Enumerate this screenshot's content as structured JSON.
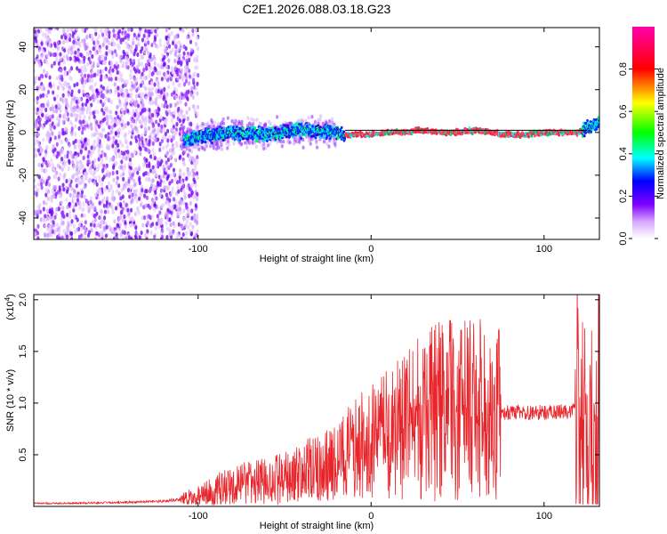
{
  "page_title": "C2E1.2026.088.03.18.G23",
  "colors": {
    "snr_line": "#e8252a",
    "frame": "#000000",
    "spectrogram_line": "#000000"
  },
  "chart_data": [
    {
      "type": "heatmap",
      "title": "",
      "xlabel": "Height of straight line (km)",
      "ylabel": "Frequency (Hz)",
      "xlim": [
        -195,
        132
      ],
      "ylim": [
        -50,
        49
      ],
      "x_ticks": [
        -100,
        0,
        100
      ],
      "x_tick_labels": [
        "-100",
        "0",
        "100"
      ],
      "y_ticks": [
        -40,
        -20,
        0,
        20,
        40
      ],
      "y_tick_labels": [
        "-40",
        "-20",
        "0",
        "20",
        "40"
      ],
      "grid": false,
      "colorbar": {
        "label": "Normalized spectral amplitude",
        "range": [
          0,
          1
        ],
        "ticks": [
          0.0,
          0.2,
          0.4,
          0.6,
          0.8
        ],
        "tick_labels": [
          "0.0",
          "0.2",
          "0.4",
          "0.6",
          "0.8"
        ],
        "colormap": [
          "#ffffff",
          "#7f00ff",
          "#0000ff",
          "#00ffff",
          "#00ff00",
          "#ffff00",
          "#ff0000",
          "#ff00ff"
        ]
      },
      "ridge": {
        "x": [
          -105,
          -80,
          -60,
          -40,
          -20,
          -15,
          0,
          10,
          20,
          25,
          30,
          40,
          50,
          60,
          70,
          75,
          80,
          90,
          100,
          110,
          120,
          125,
          132
        ],
        "y": [
          -3,
          0,
          -1,
          1,
          0,
          -1,
          -1,
          0,
          0,
          1,
          1,
          0,
          0,
          1,
          0,
          -1,
          -1,
          -1,
          0,
          0,
          0,
          2,
          5
        ]
      },
      "reference_line": {
        "from_x": -15,
        "to_x": 125,
        "y": 1
      }
    },
    {
      "type": "line",
      "title": "",
      "xlabel": "Height of straight line (km)",
      "ylabel": "SNR (10 * v/v)",
      "y_multiplier": "(x10",
      "y_multiplier_exp": "4",
      "y_multiplier_close": ")",
      "xlim": [
        -195,
        132
      ],
      "ylim": [
        0,
        20500
      ],
      "x_ticks": [
        -100,
        0,
        100
      ],
      "x_tick_labels": [
        "-100",
        "0",
        "100"
      ],
      "y_ticks": [
        5000,
        10000,
        15000,
        20000
      ],
      "y_tick_labels": [
        "0.5",
        "1.0",
        "1.5",
        "2.0"
      ],
      "grid": false,
      "series": [
        {
          "x": [
            -195,
            -180,
            -160,
            -140,
            -120,
            -110,
            -100,
            -90,
            -80,
            -70,
            -60,
            -50,
            -40,
            -30,
            -20,
            -15,
            -10,
            0,
            10,
            20,
            30,
            40,
            50,
            60,
            68,
            72,
            80,
            90,
            100,
            110,
            115,
            120,
            123,
            126,
            130,
            132
          ],
          "y": [
            300,
            300,
            350,
            400,
            500,
            700,
            1000,
            1600,
            2000,
            2300,
            2400,
            2700,
            3200,
            3700,
            4200,
            5000,
            5500,
            6200,
            6800,
            7800,
            8600,
            9300,
            9300,
            9400,
            9500,
            9000,
            9100,
            9100,
            9100,
            9150,
            9200,
            9300,
            8500,
            6000,
            9000,
            11000
          ]
        }
      ]
    }
  ]
}
